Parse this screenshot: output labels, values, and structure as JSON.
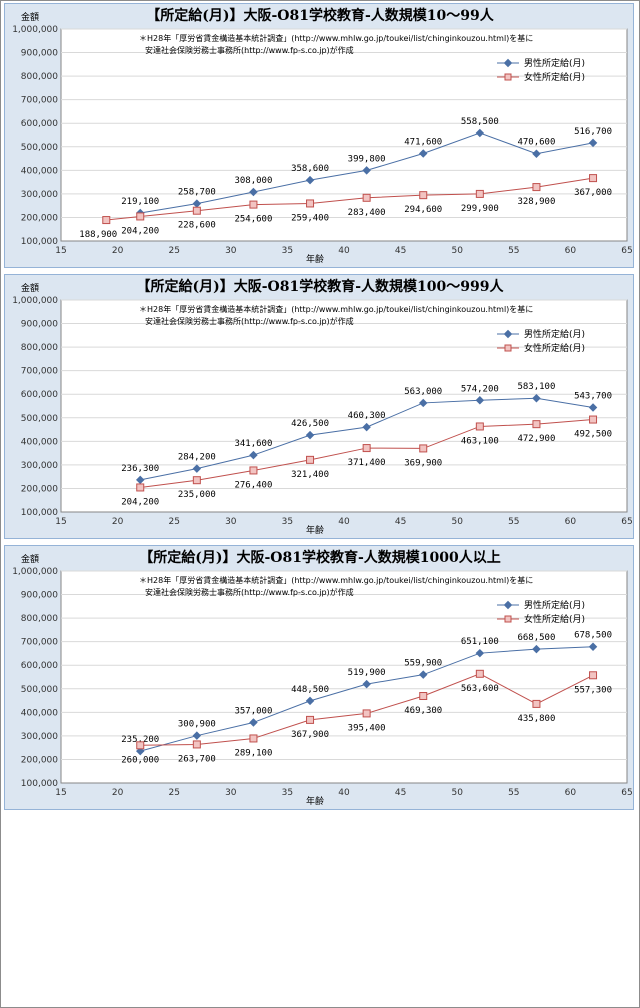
{
  "legend_labels": [
    "男性所定給(月)",
    "女性所定給(月)"
  ],
  "source_note_line1": "＊H28年「厚労省賃金構造基本統計調査」(http://www.mhlw.go.jp/toukei/list/chinginkouzou.html)を基に",
  "source_note_line2": "安達社会保険労務士事務所(http://www.fp-s.co.jp)が作成",
  "colors": {
    "male": "#4a6fa5",
    "female": "#c0504d",
    "female_fill": "#f2c4c2",
    "plot_bg": "#ffffff",
    "panel_bg": "#dce6f1"
  },
  "chart_data": [
    {
      "type": "line",
      "title": "【所定給(月)】大阪-O81学校教育-人数規模10〜99人",
      "ylabel": "金額",
      "xlabel": "年齢",
      "xlim": [
        15,
        65
      ],
      "ylim": [
        100000,
        1000000
      ],
      "xticks": [
        15,
        20,
        25,
        30,
        35,
        40,
        45,
        50,
        55,
        60,
        65
      ],
      "yticks": [
        100000,
        200000,
        300000,
        400000,
        500000,
        600000,
        700000,
        800000,
        900000,
        1000000
      ],
      "series": [
        {
          "name": "男性所定給(月)",
          "x": [
            22,
            27,
            32,
            37,
            42,
            47,
            52,
            57,
            62
          ],
          "values": [
            219100,
            258700,
            308000,
            358600,
            399800,
            471600,
            558500,
            470600,
            516700
          ],
          "labels": [
            "219,100",
            "258,700",
            "308,000",
            "358,600",
            "399,800",
            "471,600",
            "558,500",
            "470,600",
            "516,700"
          ]
        },
        {
          "name": "女性所定給(月)",
          "x": [
            19,
            22,
            27,
            32,
            37,
            42,
            47,
            52,
            57,
            62
          ],
          "values": [
            188900,
            204200,
            228600,
            254600,
            259400,
            283400,
            294600,
            299900,
            328900,
            367000
          ],
          "labels": [
            "188,900",
            "204,200",
            "228,600",
            "254,600",
            "259,400",
            "283,400",
            "294,600",
            "299,900",
            "328,900",
            "367,000"
          ]
        }
      ]
    },
    {
      "type": "line",
      "title": "【所定給(月)】大阪-O81学校教育-人数規模100〜999人",
      "ylabel": "金額",
      "xlabel": "年齢",
      "xlim": [
        15,
        65
      ],
      "ylim": [
        100000,
        1000000
      ],
      "xticks": [
        15,
        20,
        25,
        30,
        35,
        40,
        45,
        50,
        55,
        60,
        65
      ],
      "yticks": [
        100000,
        200000,
        300000,
        400000,
        500000,
        600000,
        700000,
        800000,
        900000,
        1000000
      ],
      "series": [
        {
          "name": "男性所定給(月)",
          "x": [
            22,
            27,
            32,
            37,
            42,
            47,
            52,
            57,
            62
          ],
          "values": [
            236300,
            284200,
            341600,
            426500,
            460300,
            563000,
            574200,
            583100,
            543700
          ],
          "labels": [
            "236,300",
            "284,200",
            "341,600",
            "426,500",
            "460,300",
            "563,000",
            "574,200",
            "583,100",
            "543,700"
          ]
        },
        {
          "name": "女性所定給(月)",
          "x": [
            22,
            27,
            32,
            37,
            42,
            47,
            52,
            57,
            62
          ],
          "values": [
            204200,
            235000,
            276400,
            321400,
            371400,
            369900,
            463100,
            472900,
            492500
          ],
          "labels": [
            "204,200",
            "235,000",
            "276,400",
            "321,400",
            "371,400",
            "369,900",
            "463,100",
            "472,900",
            "492,500"
          ]
        }
      ]
    },
    {
      "type": "line",
      "title": "【所定給(月)】大阪-O81学校教育-人数規模1000人以上",
      "ylabel": "金額",
      "xlabel": "年齢",
      "xlim": [
        15,
        65
      ],
      "ylim": [
        100000,
        1000000
      ],
      "xticks": [
        15,
        20,
        25,
        30,
        35,
        40,
        45,
        50,
        55,
        60,
        65
      ],
      "yticks": [
        100000,
        200000,
        300000,
        400000,
        500000,
        600000,
        700000,
        800000,
        900000,
        1000000
      ],
      "series": [
        {
          "name": "男性所定給(月)",
          "x": [
            22,
            27,
            32,
            37,
            42,
            47,
            52,
            57,
            62
          ],
          "values": [
            235200,
            300900,
            357000,
            448500,
            519900,
            559900,
            651100,
            668500,
            678500
          ],
          "labels": [
            "235,200",
            "300,900",
            "357,000",
            "448,500",
            "519,900",
            "559,900",
            "651,100",
            "668,500",
            "678,500"
          ]
        },
        {
          "name": "女性所定給(月)",
          "x": [
            22,
            27,
            32,
            37,
            42,
            47,
            52,
            57,
            62
          ],
          "values": [
            260000,
            263700,
            289100,
            367900,
            395400,
            469300,
            563600,
            435800,
            557300
          ],
          "labels": [
            "260,000",
            "263,700",
            "289,100",
            "367,900",
            "395,400",
            "469,300",
            "563,600",
            "435,800",
            "557,300"
          ]
        }
      ]
    }
  ]
}
